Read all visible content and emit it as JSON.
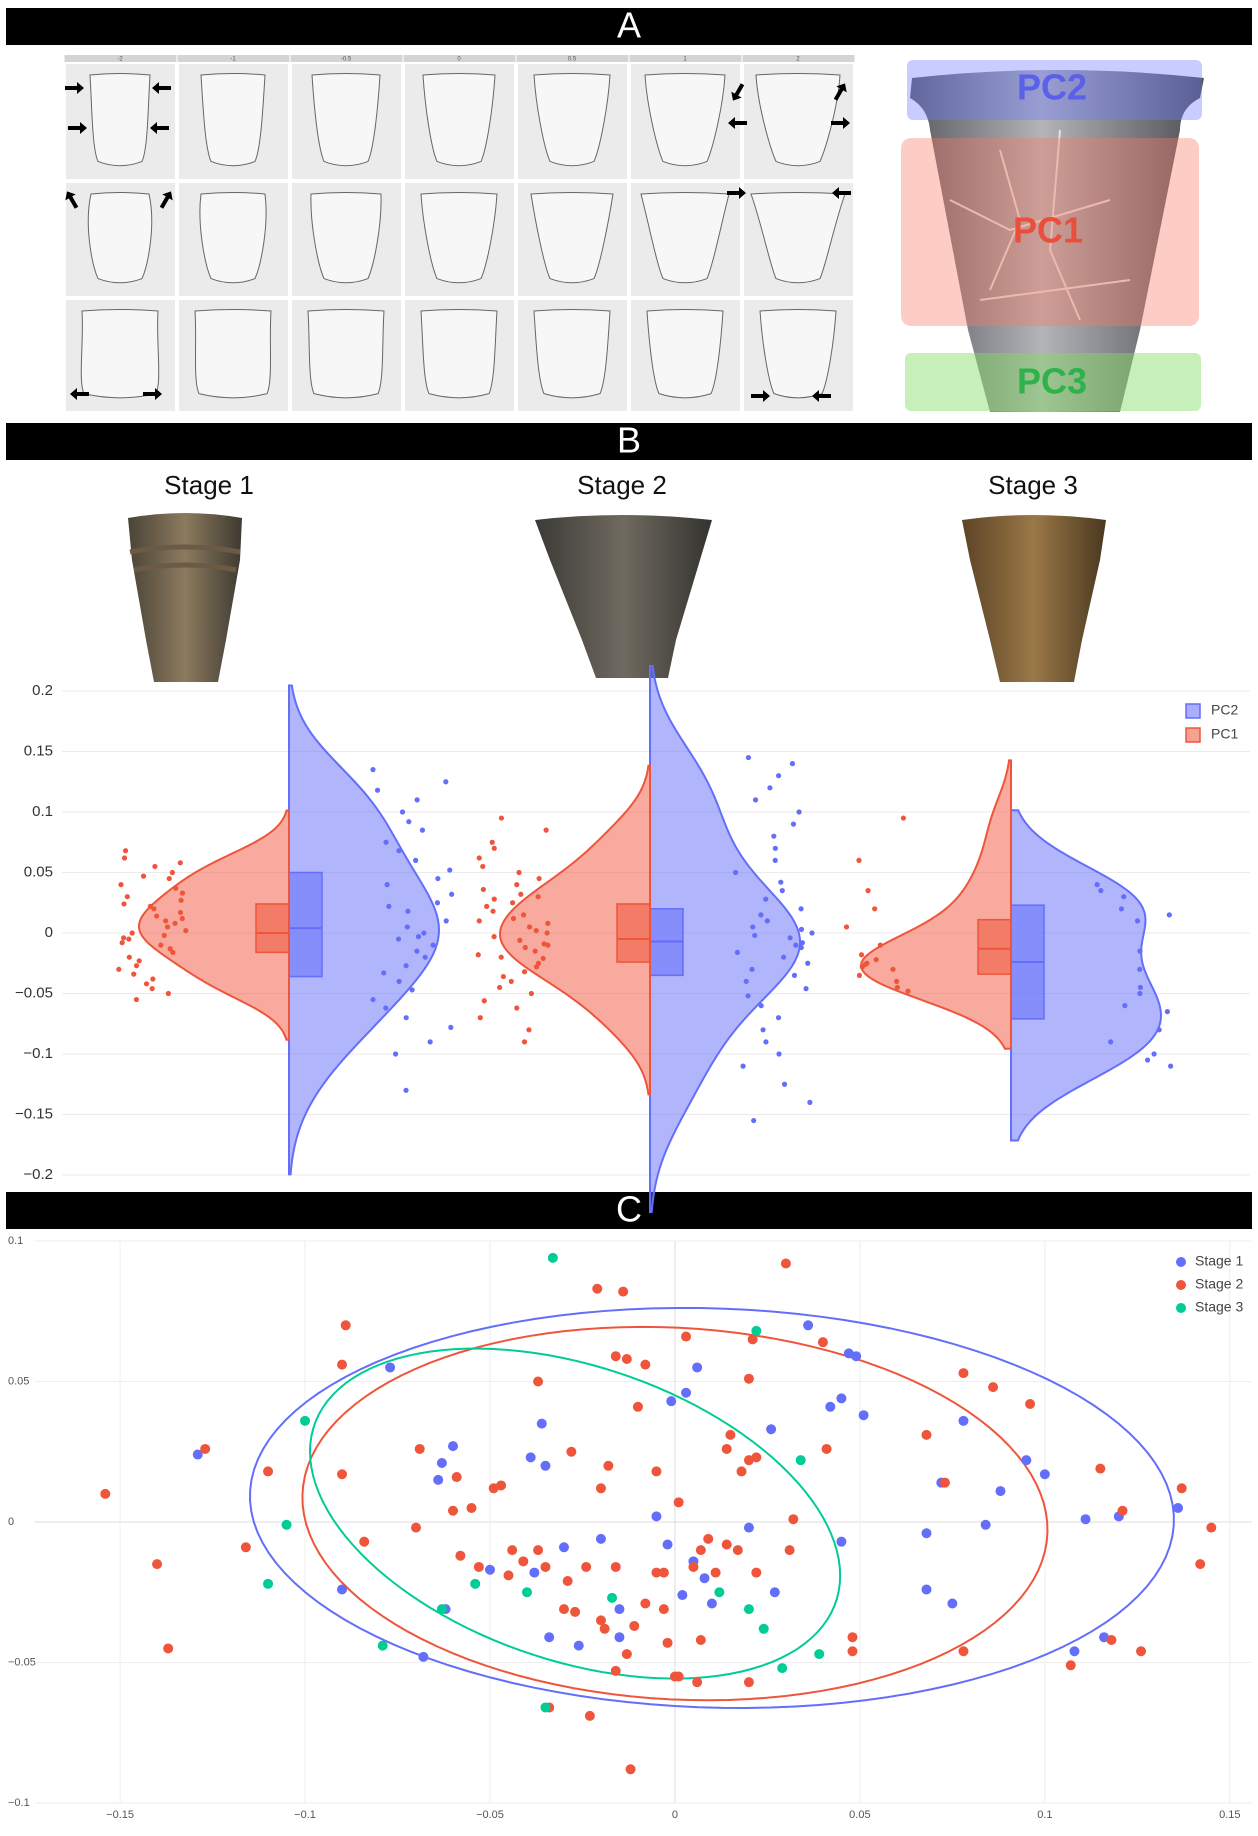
{
  "panel_labels": [
    "A",
    "B",
    "C"
  ],
  "shape_grid_columns": [
    "-2",
    "-1",
    "-0.5",
    "0",
    "0.5",
    "1",
    "2"
  ],
  "pot_regions": [
    "PC2",
    "PC1",
    "PC3"
  ],
  "chart_data": [
    {
      "type": "violin",
      "categories": [
        "Stage 1",
        "Stage 2",
        "Stage 3"
      ],
      "ylim": [
        -0.2,
        0.2
      ],
      "yticks": [
        0.2,
        0.15,
        0.1,
        0.05,
        0,
        {
          "value": -0.05,
          "label": "−0.05"
        },
        {
          "value": -0.1,
          "label": "−0.1"
        },
        {
          "value": -0.15,
          "label": "−0.15"
        },
        {
          "value": -0.2,
          "label": "−0.2"
        }
      ],
      "grid": true,
      "legend": "top-right",
      "series": [
        {
          "name": "PC2",
          "color": "#636efa",
          "side": "positive",
          "values": [
            [
              0.135,
              0.125,
              0.118,
              0.11,
              0.1,
              0.092,
              0.085,
              0.075,
              0.068,
              0.06,
              0.052,
              0.045,
              0.04,
              0.032,
              0.025,
              0.018,
              0.01,
              0.005,
              0,
              -0.005,
              -0.01,
              -0.015,
              -0.02,
              -0.027,
              -0.033,
              -0.04,
              -0.047,
              -0.055,
              -0.062,
              -0.07,
              -0.078,
              -0.09,
              -0.1,
              -0.13,
              0.022,
              -0.003
            ],
            [
              0.145,
              0.14,
              0.13,
              0.12,
              0.11,
              0.1,
              0.09,
              0.08,
              0.07,
              0.06,
              0.05,
              0.042,
              0.035,
              0.028,
              0.02,
              0.015,
              0.01,
              0.005,
              0,
              -0.004,
              -0.008,
              -0.012,
              -0.016,
              -0.02,
              -0.025,
              -0.03,
              -0.035,
              -0.04,
              -0.046,
              -0.052,
              -0.06,
              -0.07,
              -0.08,
              -0.09,
              -0.1,
              -0.11,
              -0.125,
              -0.14,
              -0.155,
              -0.002,
              -0.01,
              0.003
            ],
            [
              0.04,
              0.035,
              0.03,
              0.02,
              0.015,
              0.01,
              -0.015,
              -0.03,
              -0.045,
              -0.05,
              -0.06,
              -0.065,
              -0.08,
              -0.09,
              -0.1,
              -0.105,
              -0.11
            ]
          ],
          "boxes": [
            {
              "q1": -0.036,
              "median": 0.004,
              "q3": 0.05
            },
            {
              "q1": -0.035,
              "median": -0.007,
              "q3": 0.02
            },
            {
              "q1": -0.071,
              "median": -0.024,
              "q3": 0.023
            }
          ]
        },
        {
          "name": "PC1",
          "color": "#ef553b",
          "side": "negative",
          "values": [
            [
              0.068,
              0.062,
              0.058,
              0.055,
              0.05,
              0.047,
              0.045,
              0.04,
              0.037,
              0.033,
              0.03,
              0.027,
              0.024,
              0.02,
              0.017,
              0.014,
              0.01,
              0.008,
              0.005,
              0.002,
              0,
              -0.002,
              -0.005,
              -0.008,
              -0.01,
              -0.013,
              -0.016,
              -0.02,
              -0.023,
              -0.027,
              -0.03,
              -0.034,
              -0.038,
              -0.042,
              -0.046,
              -0.05,
              -0.055,
              0.012,
              -0.004,
              0.022
            ],
            [
              0.095,
              0.085,
              0.075,
              0.07,
              0.062,
              0.055,
              0.05,
              0.045,
              0.04,
              0.036,
              0.032,
              0.028,
              0.025,
              0.022,
              0.018,
              0.015,
              0.012,
              0.008,
              0.005,
              0.002,
              0,
              -0.003,
              -0.006,
              -0.009,
              -0.012,
              -0.015,
              -0.018,
              -0.021,
              -0.025,
              -0.028,
              -0.032,
              -0.036,
              -0.04,
              -0.045,
              -0.05,
              -0.056,
              -0.062,
              -0.07,
              -0.08,
              -0.09,
              0.01,
              -0.01,
              -0.02,
              0.03
            ],
            [
              0.095,
              0.06,
              0.035,
              0.02,
              0.005,
              -0.01,
              -0.018,
              -0.022,
              -0.025,
              -0.028,
              -0.03,
              -0.035,
              -0.04,
              -0.045,
              -0.048,
              -0.026
            ]
          ],
          "boxes": [
            {
              "q1": -0.016,
              "median": 0,
              "q3": 0.024
            },
            {
              "q1": -0.024,
              "median": -0.005,
              "q3": 0.024
            },
            {
              "q1": -0.034,
              "median": -0.013,
              "q3": 0.011
            }
          ]
        }
      ]
    },
    {
      "type": "scatter",
      "xlim": [
        -0.173,
        0.156
      ],
      "ylim": [
        -0.1,
        0.1
      ],
      "xticks": [
        {
          "value": -0.15,
          "label": "−0.15"
        },
        {
          "value": -0.1,
          "label": "−0.1"
        },
        {
          "value": -0.05,
          "label": "−0.05"
        },
        0,
        0.05,
        0.1,
        0.15
      ],
      "yticks": [
        0.1,
        0.05,
        0,
        {
          "value": -0.05,
          "label": "−0.05"
        },
        {
          "value": -0.1,
          "label": "−0.1"
        }
      ],
      "grid": true,
      "legend": "top-right",
      "series": [
        {
          "name": "Stage 1",
          "color": "#636efa",
          "x": [
            -0.129,
            -0.077,
            0.036,
            0.047,
            0.049,
            0.045,
            0.051,
            0.042,
            0.026,
            0.006,
            0.003,
            -0.001,
            -0.036,
            -0.06,
            -0.063,
            -0.064,
            -0.039,
            -0.035,
            -0.005,
            0.02,
            -0.002,
            0.005,
            -0.02,
            -0.03,
            -0.05,
            -0.038,
            0.008,
            0.002,
            -0.034,
            -0.026,
            -0.015,
            0.01,
            0.027,
            0.045,
            0.068,
            0.072,
            0.078,
            0.088,
            0.084,
            0.095,
            0.1,
            0.111,
            0.12,
            0.136,
            0.068,
            0.075,
            0.108,
            0.116,
            -0.09,
            -0.062,
            -0.068,
            -0.015
          ],
          "y": [
            0.024,
            0.055,
            0.07,
            0.06,
            0.059,
            0.044,
            0.038,
            0.041,
            0.033,
            0.055,
            0.046,
            0.043,
            0.035,
            0.027,
            0.021,
            0.015,
            0.023,
            0.02,
            0.002,
            -0.002,
            -0.008,
            -0.014,
            -0.006,
            -0.009,
            -0.017,
            -0.018,
            -0.02,
            -0.026,
            -0.041,
            -0.044,
            -0.041,
            -0.029,
            -0.025,
            -0.007,
            -0.004,
            0.014,
            0.036,
            0.011,
            -0.001,
            0.022,
            0.017,
            0.001,
            0.002,
            0.005,
            -0.024,
            -0.029,
            -0.046,
            -0.041,
            -0.024,
            -0.031,
            -0.048,
            -0.031
          ],
          "ellipse": {
            "cx": 0.01,
            "cy": 0.005,
            "rx": 0.125,
            "ry": 0.071,
            "tilt": -0.05
          }
        },
        {
          "name": "Stage 2",
          "color": "#ef553b",
          "x": [
            -0.154,
            -0.127,
            -0.089,
            -0.09,
            -0.11,
            -0.09,
            -0.116,
            -0.14,
            -0.137,
            -0.084,
            -0.069,
            -0.059,
            -0.06,
            -0.055,
            -0.049,
            -0.047,
            -0.037,
            -0.028,
            -0.021,
            -0.014,
            -0.016,
            -0.013,
            -0.008,
            -0.01,
            -0.018,
            -0.02,
            -0.005,
            0.003,
            0.001,
            0.014,
            0.015,
            0.021,
            0.02,
            0.018,
            0.02,
            0.022,
            0.032,
            0.03,
            0.04,
            0.041,
            0.068,
            0.073,
            0.078,
            0.086,
            0.096,
            0.115,
            0.121,
            0.137,
            0.145,
            0.142,
            0.126,
            0.118,
            0.107,
            0.078,
            0.048,
            0.048,
            0.02,
            0.006,
            0,
            0.001,
            -0.012,
            -0.023,
            -0.034,
            -0.016,
            -0.011,
            -0.013,
            -0.002,
            0.007,
            -0.003,
            -0.005,
            0.007,
            0.014,
            0.017,
            0.022,
            0.011,
            0.005,
            -0.016,
            -0.024,
            -0.029,
            -0.035,
            -0.041,
            -0.045,
            -0.037,
            -0.03,
            -0.027,
            -0.02,
            -0.019,
            -0.008,
            -0.003,
            -0.044,
            0.031,
            -0.053,
            -0.058,
            -0.07,
            0.009
          ],
          "y": [
            0.01,
            0.026,
            0.07,
            0.056,
            0.018,
            0.017,
            -0.009,
            -0.015,
            -0.045,
            -0.007,
            0.026,
            0.016,
            0.004,
            0.005,
            0.012,
            0.013,
            0.05,
            0.025,
            0.083,
            0.082,
            0.059,
            0.058,
            0.056,
            0.041,
            0.02,
            0.012,
            0.018,
            0.066,
            0.007,
            0.026,
            0.031,
            0.065,
            0.051,
            0.018,
            0.022,
            0.023,
            0.001,
            0.092,
            0.064,
            0.026,
            0.031,
            0.014,
            0.053,
            0.048,
            0.042,
            0.019,
            0.004,
            0.012,
            -0.002,
            -0.015,
            -0.046,
            -0.042,
            -0.051,
            -0.046,
            -0.041,
            -0.046,
            -0.057,
            -0.057,
            -0.055,
            -0.055,
            -0.088,
            -0.069,
            -0.066,
            -0.053,
            -0.037,
            -0.047,
            -0.043,
            -0.042,
            -0.031,
            -0.018,
            -0.01,
            -0.008,
            -0.01,
            -0.018,
            -0.018,
            -0.016,
            -0.016,
            -0.016,
            -0.021,
            -0.016,
            -0.014,
            -0.019,
            -0.01,
            -0.031,
            -0.032,
            -0.035,
            -0.038,
            -0.029,
            -0.018,
            -0.01,
            -0.01,
            -0.016,
            -0.012,
            -0.002,
            -0.006
          ],
          "ellipse": {
            "cx": 0.0,
            "cy": 0.003,
            "rx": 0.101,
            "ry": 0.066,
            "tilt": -0.1
          }
        },
        {
          "name": "Stage 3",
          "color": "#00cc96",
          "x": [
            -0.033,
            0.022,
            -0.1,
            0.034,
            -0.105,
            -0.11,
            -0.054,
            -0.063,
            -0.04,
            -0.017,
            0.012,
            0.02,
            0.024,
            0.039,
            0.029,
            -0.079,
            -0.035
          ],
          "y": [
            0.094,
            0.068,
            0.036,
            0.022,
            -0.001,
            -0.022,
            -0.022,
            -0.031,
            -0.025,
            -0.027,
            -0.025,
            -0.031,
            -0.038,
            -0.047,
            -0.052,
            -0.044,
            -0.066
          ],
          "ellipse": {
            "cx": -0.027,
            "cy": 0.003,
            "rx": 0.078,
            "ry": 0.05,
            "tilt": -0.6
          }
        }
      ]
    }
  ]
}
